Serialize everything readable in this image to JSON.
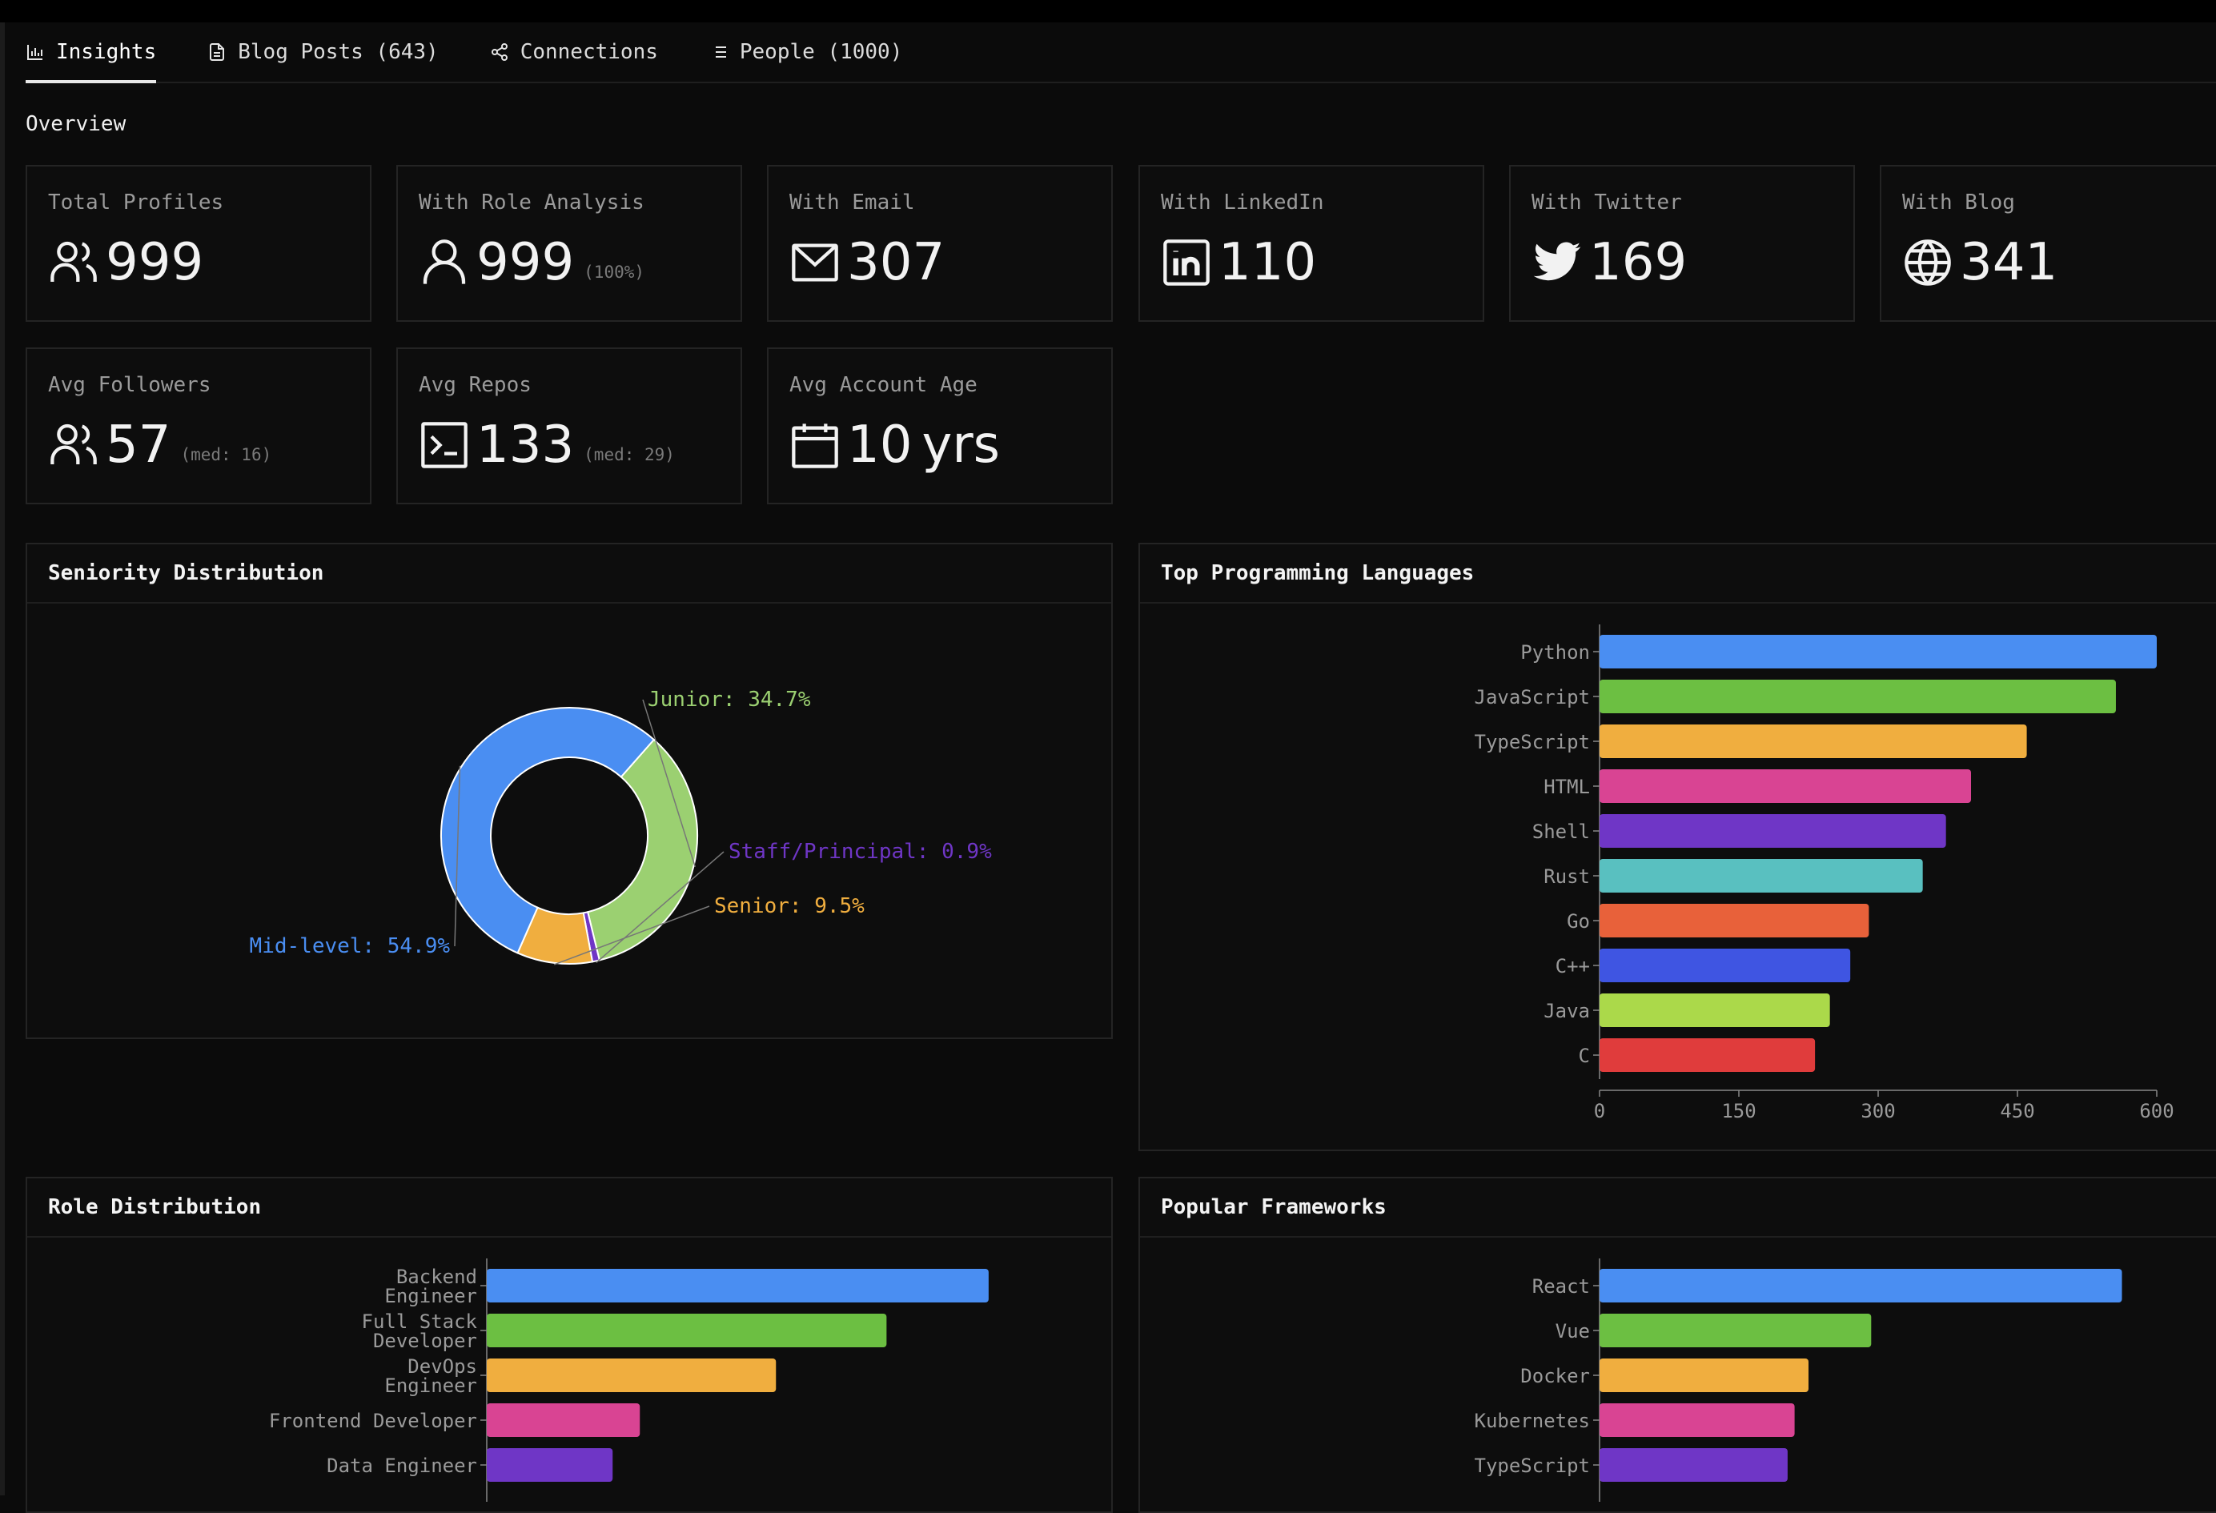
{
  "tabs": [
    {
      "label": "Insights",
      "icon": "bar-chart-icon",
      "active": true
    },
    {
      "label": "Blog Posts (643)",
      "icon": "document-icon",
      "active": false
    },
    {
      "label": "Connections",
      "icon": "share-icon",
      "active": false
    },
    {
      "label": "People (1000)",
      "icon": "list-icon",
      "active": false
    }
  ],
  "overview": {
    "title": "Overview"
  },
  "stats": {
    "total_profiles": {
      "label": "Total Profiles",
      "value": "999",
      "icon": "users-icon"
    },
    "role_analysis": {
      "label": "With Role Analysis",
      "value": "999",
      "sub": "(100%)",
      "icon": "user-icon"
    },
    "email": {
      "label": "With Email",
      "value": "307",
      "icon": "mail-icon"
    },
    "linkedin": {
      "label": "With LinkedIn",
      "value": "110",
      "icon": "linkedin-icon"
    },
    "twitter": {
      "label": "With Twitter",
      "value": "169",
      "icon": "twitter-icon"
    },
    "blog": {
      "label": "With Blog",
      "value": "341",
      "icon": "globe-icon"
    },
    "followers": {
      "label": "Avg Followers",
      "value": "57",
      "sub": "(med: 16)",
      "icon": "users-icon"
    },
    "repos": {
      "label": "Avg Repos",
      "value": "133",
      "sub": "(med: 29)",
      "icon": "terminal-icon"
    },
    "age": {
      "label": "Avg Account Age",
      "value": "10",
      "unit": "yrs",
      "icon": "calendar-icon"
    }
  },
  "colors": {
    "blue": "#4a8ef2",
    "green": "#6cbf42",
    "orange": "#f0ae3f",
    "pink": "#d94493",
    "purple": "#6f36c6",
    "teal": "#59c0c0",
    "red_orange": "#e8613a",
    "indigo": "#3f55e2",
    "lime": "#abd94a",
    "red": "#e03c3c",
    "light_green": "#9bd071"
  },
  "panels": {
    "seniority": {
      "title": "Seniority Distribution"
    },
    "languages": {
      "title": "Top Programming Languages"
    },
    "roles": {
      "title": "Role Distribution"
    },
    "frameworks": {
      "title": "Popular Frameworks"
    }
  },
  "chart_data": [
    {
      "type": "pie",
      "title": "Seniority Distribution",
      "slices": [
        {
          "label": "Junior: 34.7%",
          "name": "Junior",
          "value": 34.7,
          "color": "#9bd071"
        },
        {
          "label": "Staff/Principal: 0.9%",
          "name": "Staff/Principal",
          "value": 0.9,
          "color": "#6f36c6"
        },
        {
          "label": "Senior: 9.5%",
          "name": "Senior",
          "value": 9.5,
          "color": "#f0ae3f"
        },
        {
          "label": "Mid-level: 54.9%",
          "name": "Mid-level",
          "value": 54.9,
          "color": "#4a8ef2"
        }
      ]
    },
    {
      "type": "bar",
      "orientation": "horizontal",
      "title": "Top Programming Languages",
      "categories": [
        "Python",
        "JavaScript",
        "TypeScript",
        "HTML",
        "Shell",
        "Rust",
        "Go",
        "C++",
        "Java",
        "C"
      ],
      "values": [
        600,
        556,
        460,
        400,
        373,
        348,
        290,
        270,
        248,
        232
      ],
      "colors": [
        "#4a8ef2",
        "#6cbf42",
        "#f0ae3f",
        "#d94493",
        "#6f36c6",
        "#59c0c0",
        "#e8613a",
        "#3f55e2",
        "#abd94a",
        "#e03c3c"
      ],
      "xticks": [
        "0",
        "150",
        "300",
        "450",
        "600"
      ],
      "xlim": [
        0,
        600
      ]
    },
    {
      "type": "bar",
      "orientation": "horizontal",
      "title": "Role Distribution",
      "categories": [
        [
          "Backend",
          "Engineer"
        ],
        [
          "Full Stack",
          "Developer"
        ],
        [
          "DevOps",
          "Engineer"
        ],
        [
          "Frontend Developer"
        ],
        [
          "Data Engineer"
        ]
      ],
      "values": [
        295,
        235,
        170,
        90,
        74
      ],
      "colors": [
        "#4a8ef2",
        "#6cbf42",
        "#f0ae3f",
        "#d94493",
        "#6f36c6",
        "#59c0c0"
      ],
      "xlim": [
        0,
        320
      ]
    },
    {
      "type": "bar",
      "orientation": "horizontal",
      "title": "Popular Frameworks",
      "categories": [
        "React",
        "Vue",
        "Docker",
        "Kubernetes",
        "TypeScript"
      ],
      "values": [
        300,
        156,
        120,
        112,
        108
      ],
      "colors": [
        "#4a8ef2",
        "#6cbf42",
        "#f0ae3f",
        "#d94493",
        "#6f36c6",
        "#59c0c0"
      ],
      "xlim": [
        0,
        320
      ]
    }
  ]
}
